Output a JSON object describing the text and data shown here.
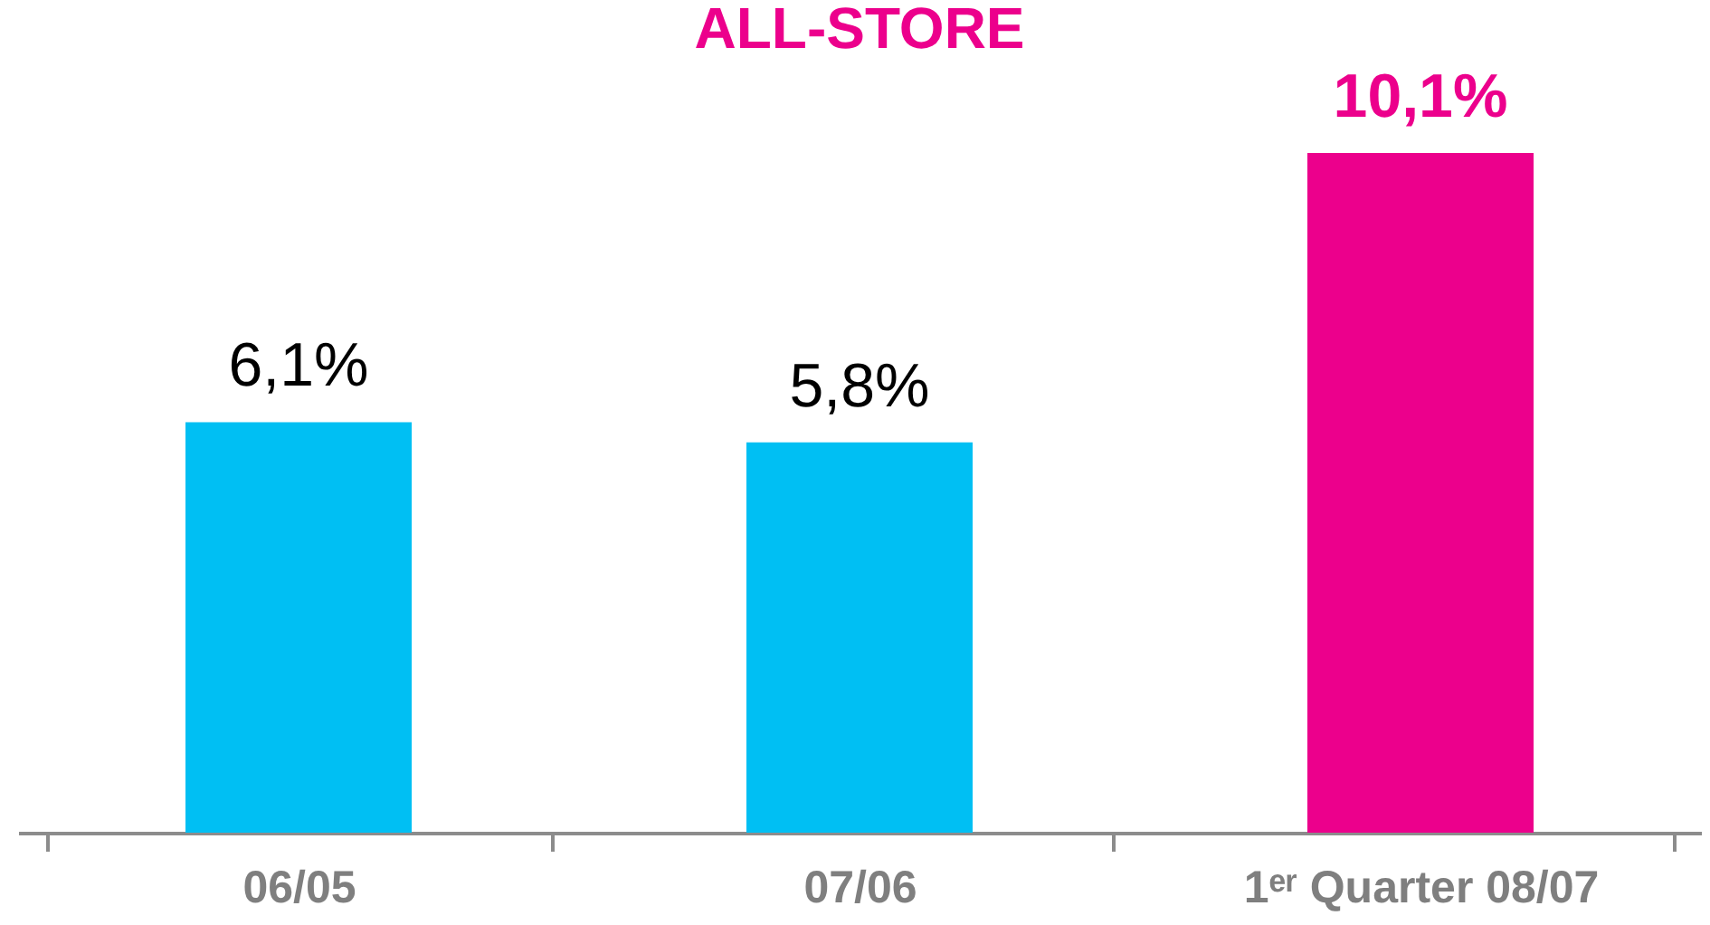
{
  "chart_data": {
    "type": "bar",
    "title": "ALL-STORE",
    "categories": [
      "06/05",
      "07/06",
      "1ᵉʳ Quarter 08/07"
    ],
    "values": [
      6.1,
      5.8,
      10.1
    ],
    "colors": [
      "#00bff3",
      "#00bff3",
      "#ec008c"
    ],
    "value_labels": [
      "6,1%",
      "5,8%",
      "10,1%"
    ],
    "tick_labels": "x"
  }
}
